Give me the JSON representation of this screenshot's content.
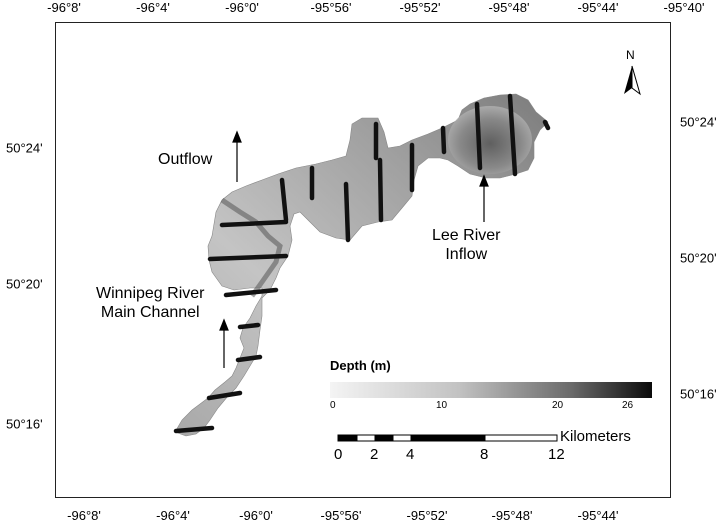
{
  "axes": {
    "top_ticks": [
      "-96°8'",
      "-96°4'",
      "-96°0'",
      "-95°56'",
      "-95°52'",
      "-95°48'",
      "-95°44'",
      "-95°40'"
    ],
    "bottom_ticks": [
      "-96°8'",
      "-96°4'",
      "-96°0'",
      "-95°56'",
      "-95°52'",
      "-95°48'",
      "-95°44'"
    ],
    "left_ticks": [
      "50°24'",
      "50°20'",
      "50°16'"
    ],
    "right_ticks": [
      "50°24'",
      "50°20'",
      "50°16'"
    ]
  },
  "labels": {
    "outflow": "Outflow",
    "winnipeg_line1": "Winnipeg River",
    "winnipeg_line2": "Main Channel",
    "lee_line1": "Lee River",
    "lee_line2": "Inflow",
    "north": "N"
  },
  "legend": {
    "title": "Depth (m)",
    "ticks": [
      "0",
      "10",
      "20",
      "26"
    ],
    "colors": [
      "#f2f2f2",
      "#0a0a0a"
    ]
  },
  "scale_bar": {
    "unit": "Kilometers",
    "ticks": [
      "0",
      "2",
      "4",
      "8",
      "12"
    ]
  },
  "colors": {
    "lake_light": "#c8c8c8",
    "lake_mid": "#9a9a9a",
    "lake_dark": "#6e6e6e",
    "transect": "#111111"
  }
}
